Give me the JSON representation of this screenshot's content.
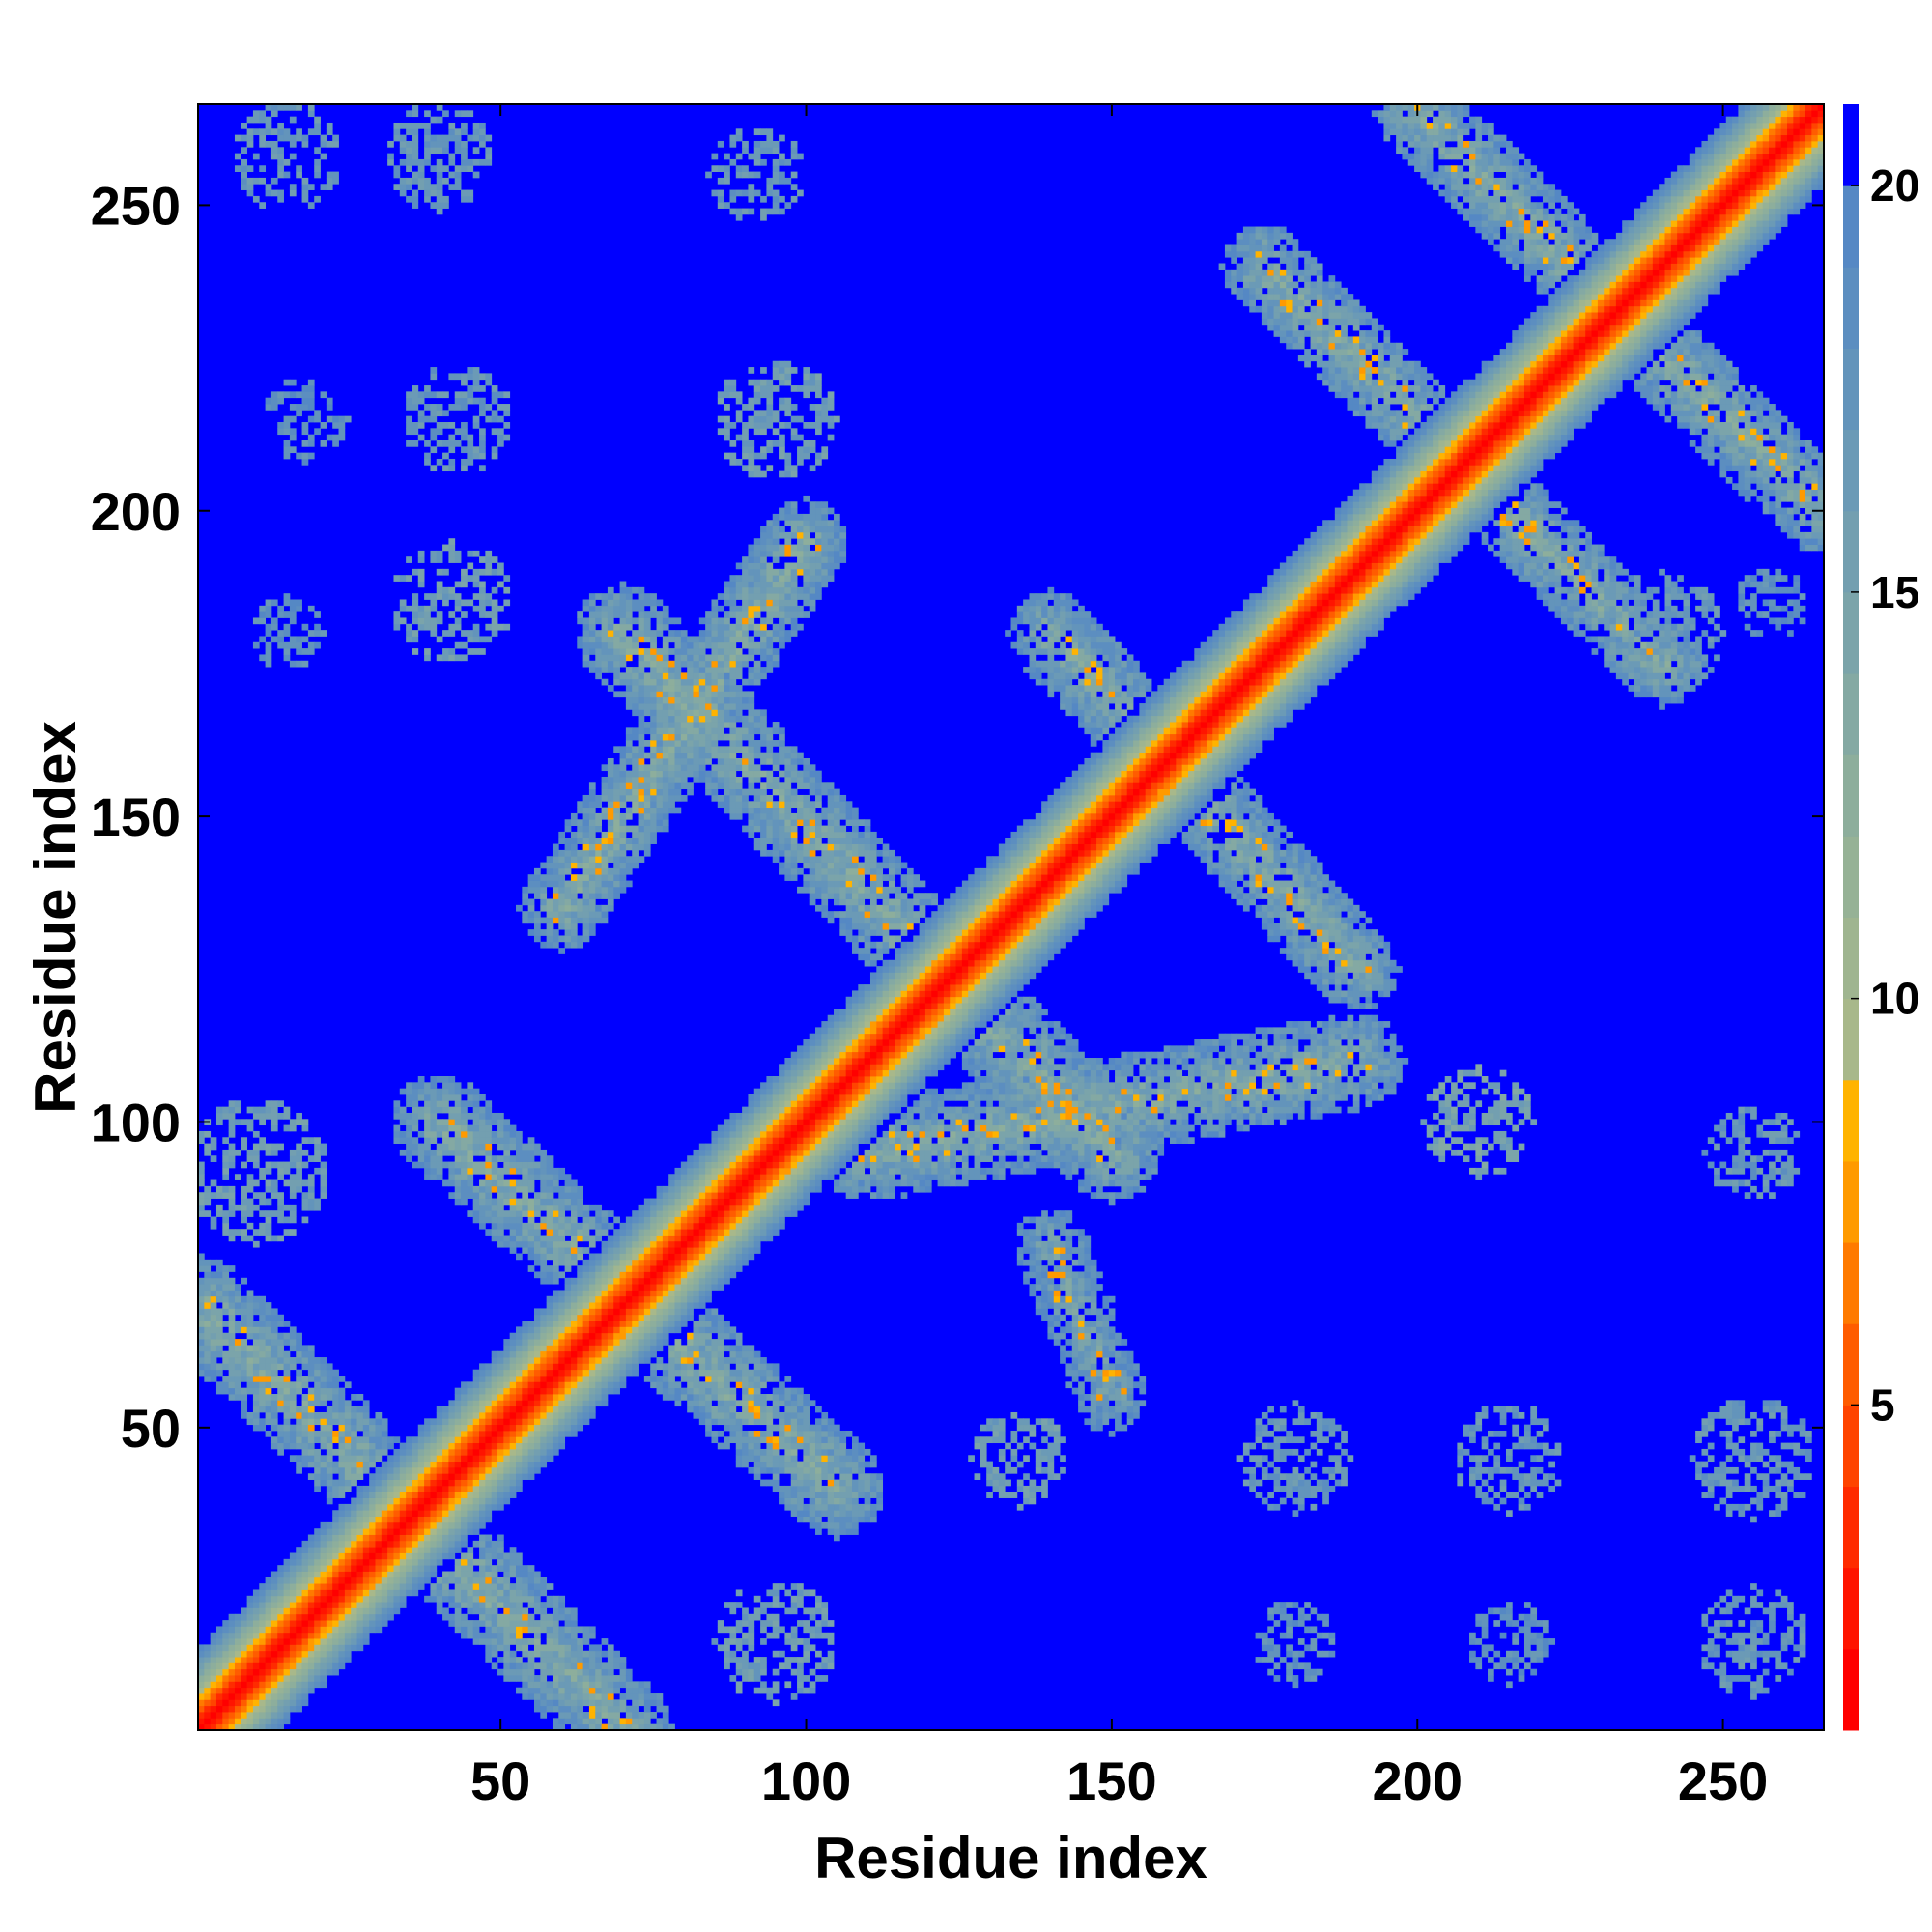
{
  "chart_data": {
    "type": "heatmap",
    "title": "",
    "xlabel": "Residue index",
    "ylabel": "Residue index",
    "n_residues": 266,
    "xlim": [
      1,
      266
    ],
    "ylim": [
      1,
      266
    ],
    "x_ticks": [
      50,
      100,
      150,
      200,
      250
    ],
    "y_ticks": [
      50,
      100,
      150,
      200,
      250
    ],
    "colorbar": {
      "range": [
        1,
        21
      ],
      "ticks": [
        5,
        10,
        15,
        20
      ],
      "levels": [
        {
          "from": 1,
          "to": 2,
          "color": "#ff0000"
        },
        {
          "from": 2,
          "to": 3,
          "color": "#ff1400"
        },
        {
          "from": 3,
          "to": 4,
          "color": "#ff2b00"
        },
        {
          "from": 4,
          "to": 5,
          "color": "#ff4400"
        },
        {
          "from": 5,
          "to": 6,
          "color": "#ff5c00"
        },
        {
          "from": 6,
          "to": 7,
          "color": "#ff7a00"
        },
        {
          "from": 7,
          "to": 8,
          "color": "#ff9a00"
        },
        {
          "from": 8,
          "to": 9,
          "color": "#ffb300"
        },
        {
          "from": 9,
          "to": 10,
          "color": "#a8b88a"
        },
        {
          "from": 10,
          "to": 11,
          "color": "#9fb590"
        },
        {
          "from": 11,
          "to": 12,
          "color": "#96b296"
        },
        {
          "from": 12,
          "to": 13,
          "color": "#8dae9c"
        },
        {
          "from": 13,
          "to": 14,
          "color": "#84a9a3"
        },
        {
          "from": 14,
          "to": 15,
          "color": "#7ba4aa"
        },
        {
          "from": 15,
          "to": 16,
          "color": "#739fb0"
        },
        {
          "from": 16,
          "to": 17,
          "color": "#6b9ab6"
        },
        {
          "from": 17,
          "to": 18,
          "color": "#6394bb"
        },
        {
          "from": 18,
          "to": 19,
          "color": "#5c8ec0"
        },
        {
          "from": 19,
          "to": 20,
          "color": "#5588c4"
        },
        {
          "from": 20,
          "to": 21,
          "color": "#0000ff"
        }
      ]
    },
    "structure": {
      "background_value": 21,
      "diagonal": {
        "half_width": 14
      },
      "bands": [
        {
          "from": [
            1,
            70
          ],
          "to": [
            70,
            1
          ],
          "width": 8,
          "value": 14
        },
        {
          "from": [
            40,
            100
          ],
          "to": [
            105,
            40
          ],
          "width": 8,
          "value": 14
        },
        {
          "from": [
            70,
            180
          ],
          "to": [
            150,
            95
          ],
          "width": 8,
          "value": 14
        },
        {
          "from": [
            100,
            195
          ],
          "to": [
            60,
            135
          ],
          "width": 7,
          "value": 14
        },
        {
          "from": [
            110,
            95
          ],
          "to": [
            190,
            110
          ],
          "width": 8,
          "value": 14
        },
        {
          "from": [
            140,
            180
          ],
          "to": [
            190,
            125
          ],
          "width": 7,
          "value": 14
        },
        {
          "from": [
            175,
            240
          ],
          "to": [
            240,
            175
          ],
          "width": 7,
          "value": 14
        },
        {
          "from": [
            200,
            265
          ],
          "to": [
            266,
            200
          ],
          "width": 7,
          "value": 14
        },
        {
          "from": [
            140,
            80
          ],
          "to": [
            150,
            55
          ],
          "width": 6,
          "value": 15
        }
      ],
      "patches": [
        {
          "center": [
            15,
            258
          ],
          "radius": 9,
          "value": 17
        },
        {
          "center": [
            40,
            258
          ],
          "radius": 9,
          "value": 17
        },
        {
          "center": [
            92,
            255
          ],
          "radius": 8,
          "value": 17
        },
        {
          "center": [
            18,
            215
          ],
          "radius": 7,
          "value": 18
        },
        {
          "center": [
            43,
            215
          ],
          "radius": 9,
          "value": 17
        },
        {
          "center": [
            95,
            215
          ],
          "radius": 10,
          "value": 16
        },
        {
          "center": [
            42,
            185
          ],
          "radius": 10,
          "value": 16
        },
        {
          "center": [
            15,
            180
          ],
          "radius": 6,
          "value": 18
        },
        {
          "center": [
            240,
            180
          ],
          "radius": 10,
          "value": 17
        },
        {
          "center": [
            258,
            185
          ],
          "radius": 6,
          "value": 18
        },
        {
          "center": [
            210,
            100
          ],
          "radius": 9,
          "value": 15
        },
        {
          "center": [
            255,
            95
          ],
          "radius": 8,
          "value": 17
        },
        {
          "center": [
            180,
            45
          ],
          "radius": 9,
          "value": 17
        },
        {
          "center": [
            215,
            45
          ],
          "radius": 9,
          "value": 17
        },
        {
          "center": [
            255,
            45
          ],
          "radius": 10,
          "value": 17
        },
        {
          "center": [
            180,
            15
          ],
          "radius": 7,
          "value": 18
        },
        {
          "center": [
            215,
            15
          ],
          "radius": 7,
          "value": 18
        },
        {
          "center": [
            255,
            15
          ],
          "radius": 9,
          "value": 17
        },
        {
          "center": [
            95,
            15
          ],
          "radius": 10,
          "value": 16
        },
        {
          "center": [
            135,
            45
          ],
          "radius": 8,
          "value": 16
        },
        {
          "center": [
            10,
            92
          ],
          "radius": 12,
          "value": 16
        }
      ]
    }
  }
}
